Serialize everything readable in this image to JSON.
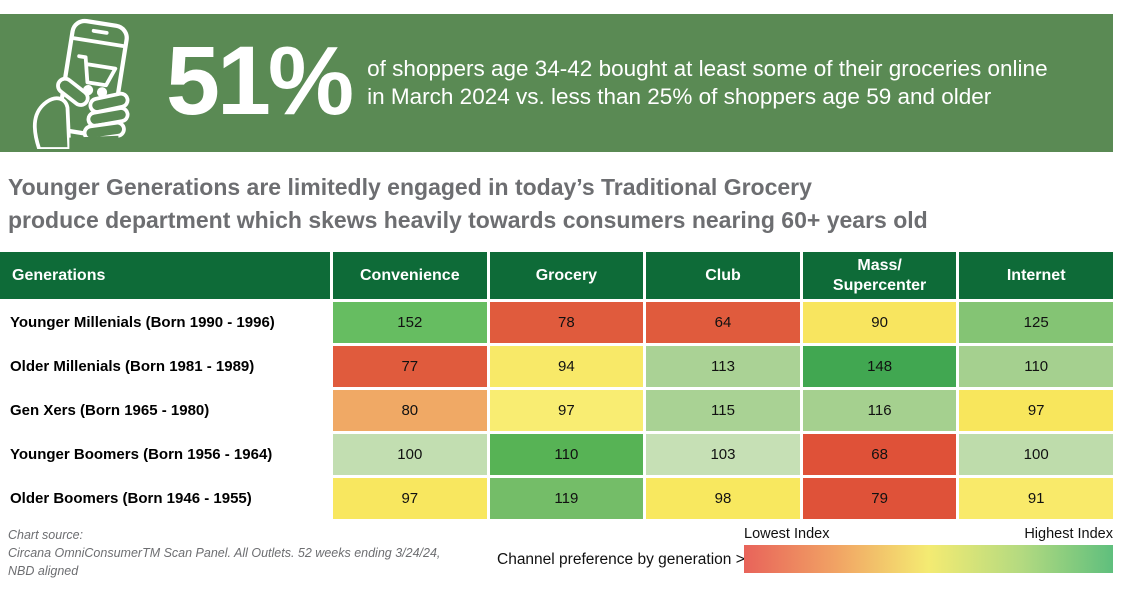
{
  "colors": {
    "banner_bg": "#5a8a54",
    "table_header_bg": "#0e6b38",
    "headline_text": "#6d6e71"
  },
  "banner": {
    "stat": "51%",
    "description": "of shoppers age 34-42 bought at least some of their groceries online\nin March 2024 vs. less than 25% of shoppers age 59 and older",
    "icon": "hand-holding-phone-with-shopping-cart-icon"
  },
  "headline": {
    "text": "Younger Generations are limitedly engaged in today’s Traditional Grocery\nproduce department which skews heavily towards consumers nearing 60+ years old"
  },
  "chart_data": {
    "type": "heatmap",
    "title": "Younger Generations are limitedly engaged in today’s Traditional Grocery produce department which skews heavily towards consumers nearing 60+ years old",
    "row_header": "Generations",
    "columns": [
      "Convenience",
      "Grocery",
      "Club",
      "Mass/\nSupercenter",
      "Internet"
    ],
    "rows": [
      "Younger Millenials (Born 1990 - 1996)",
      "Older Millenials (Born 1981 - 1989)",
      "Gen Xers (Born 1965 - 1980)",
      "Younger Boomers (Born 1956 - 1964)",
      "Older Boomers (Born 1946 - 1955)"
    ],
    "values": [
      [
        152,
        78,
        64,
        90,
        125
      ],
      [
        77,
        94,
        113,
        148,
        110
      ],
      [
        80,
        97,
        115,
        116,
        97
      ],
      [
        100,
        110,
        103,
        68,
        100
      ],
      [
        97,
        119,
        98,
        79,
        91
      ]
    ],
    "cell_colors": [
      [
        "#66bd61",
        "#e05b3d",
        "#e05b3d",
        "#f8e55f",
        "#84c474"
      ],
      [
        "#e05b3d",
        "#f8e968",
        "#aad295",
        "#41a751",
        "#a5d08f"
      ],
      [
        "#f0a965",
        "#f9ed72",
        "#a9d294",
        "#a5d08f",
        "#f8e65c"
      ],
      [
        "#c2deb1",
        "#57b355",
        "#c6e0b5",
        "#df5138",
        "#bedcab"
      ],
      [
        "#f8e75f",
        "#74bd68",
        "#f8e85f",
        "#df5239",
        "#f9ea6a"
      ]
    ],
    "legend": {
      "low_label": "Lowest Index",
      "high_label": "Highest Index",
      "position": "bottom-right"
    }
  },
  "footer": {
    "source_lines": [
      "Chart source:",
      "Circana OmniConsumerTM Scan Panel. All Outlets. 52 weeks ending 3/24/24,",
      "NBD aligned"
    ],
    "legend_label": "Channel preference by generation >",
    "legend_low": "Lowest Index",
    "legend_high": "Highest Index",
    "gradient": [
      "#e8635a",
      "#f1a364",
      "#f4eb72",
      "#b4da80",
      "#5fbf7d"
    ]
  }
}
